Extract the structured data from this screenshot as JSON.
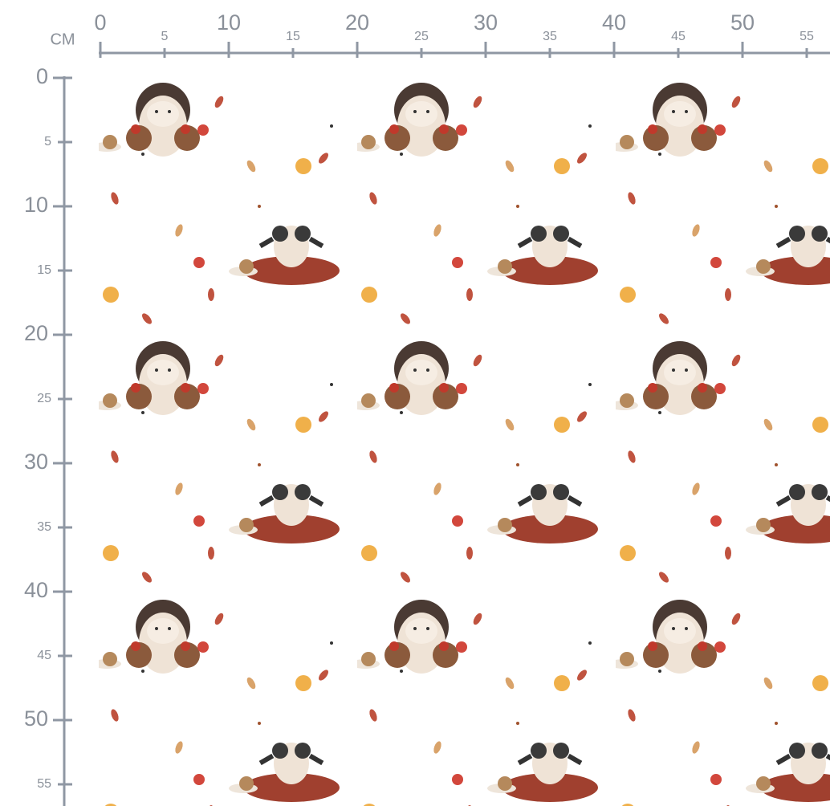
{
  "ruler": {
    "unit": "CM",
    "x_ticks": [
      0,
      5,
      10,
      15,
      20,
      25,
      30,
      35,
      40,
      45,
      50,
      55
    ],
    "y_ticks": [
      0,
      5,
      10,
      15,
      20,
      25,
      30,
      35,
      40,
      45,
      50,
      55
    ]
  }
}
